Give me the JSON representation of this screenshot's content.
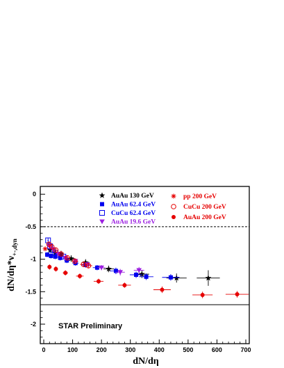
{
  "chart_data": {
    "type": "scatter",
    "xlabel": "dN/dη",
    "ylabel_main": "dN/dη*ν",
    "ylabel_sub": "+-,dyn",
    "xlim": [
      -12,
      712
    ],
    "ylim": [
      -2.3,
      0.12
    ],
    "xticks": [
      0,
      100,
      200,
      300,
      400,
      500,
      600,
      700
    ],
    "yticks": [
      0,
      -0.5,
      -1,
      -1.5,
      -2
    ],
    "ytick_labels": [
      "0",
      "-0.5",
      "-1",
      "-1.5",
      "-2"
    ],
    "reference_lines": [
      {
        "y": -0.5,
        "style": "dashed"
      },
      {
        "y": -1.7,
        "style": "solid"
      }
    ],
    "annotation": "STAR Preliminary",
    "series": [
      {
        "name": "AuAu 130 GeV",
        "marker": "star",
        "color": "#000000",
        "points": [
          {
            "x": 22,
            "y": -0.86,
            "ex": 4,
            "ey": 0.04
          },
          {
            "x": 40,
            "y": -0.9,
            "ex": 6,
            "ey": 0.04
          },
          {
            "x": 60,
            "y": -0.92,
            "ex": 8,
            "ey": 0.05
          },
          {
            "x": 95,
            "y": -0.99,
            "ex": 12,
            "ey": 0.05
          },
          {
            "x": 145,
            "y": -1.05,
            "ex": 14,
            "ey": 0.05
          },
          {
            "x": 225,
            "y": -1.15,
            "ex": 18,
            "ey": 0.05
          },
          {
            "x": 340,
            "y": -1.23,
            "ex": 25,
            "ey": 0.06
          },
          {
            "x": 460,
            "y": -1.29,
            "ex": 35,
            "ey": 0.07
          },
          {
            "x": 570,
            "y": -1.29,
            "ex": 40,
            "ey": 0.12
          }
        ]
      },
      {
        "name": "AuAu 62.4 GeV",
        "marker": "square",
        "color": "#0000ee",
        "points": [
          {
            "x": 12,
            "y": -0.93,
            "ex": 3,
            "ey": 0.04
          },
          {
            "x": 25,
            "y": -0.95,
            "ex": 4,
            "ey": 0.04
          },
          {
            "x": 40,
            "y": -0.96,
            "ex": 5,
            "ey": 0.04
          },
          {
            "x": 57,
            "y": -0.98,
            "ex": 7,
            "ey": 0.04
          },
          {
            "x": 80,
            "y": -1.02,
            "ex": 9,
            "ey": 0.04
          },
          {
            "x": 110,
            "y": -1.06,
            "ex": 11,
            "ey": 0.04
          },
          {
            "x": 145,
            "y": -1.09,
            "ex": 14,
            "ey": 0.04
          },
          {
            "x": 185,
            "y": -1.13,
            "ex": 15,
            "ey": 0.04
          },
          {
            "x": 250,
            "y": -1.18,
            "ex": 20,
            "ey": 0.05
          },
          {
            "x": 320,
            "y": -1.24,
            "ex": 22,
            "ey": 0.05
          },
          {
            "x": 355,
            "y": -1.27,
            "ex": 25,
            "ey": 0.05
          },
          {
            "x": 440,
            "y": -1.28,
            "ex": 30,
            "ey": 0.05
          }
        ]
      },
      {
        "name": "CuCu 62.4 GeV",
        "marker": "open-square",
        "color": "#0000ee",
        "points": [
          {
            "x": 15,
            "y": -0.71,
            "ex": 2,
            "ey": 0.04
          },
          {
            "x": 22,
            "y": -0.8,
            "ex": 3,
            "ey": 0.04
          },
          {
            "x": 30,
            "y": -0.86,
            "ex": 4,
            "ey": 0.04
          },
          {
            "x": 40,
            "y": -0.9,
            "ex": 5,
            "ey": 0.04
          },
          {
            "x": 52,
            "y": -0.93,
            "ex": 6,
            "ey": 0.04
          },
          {
            "x": 68,
            "y": -0.96,
            "ex": 7,
            "ey": 0.04
          }
        ]
      },
      {
        "name": "AuAu 19.6 GeV",
        "marker": "triangle-down",
        "color": "#9b1ee0",
        "points": [
          {
            "x": 20,
            "y": -0.8,
            "ex": 4,
            "ey": 0.04
          },
          {
            "x": 32,
            "y": -0.85,
            "ex": 5,
            "ey": 0.04
          },
          {
            "x": 50,
            "y": -0.92,
            "ex": 6,
            "ey": 0.04
          },
          {
            "x": 75,
            "y": -0.98,
            "ex": 8,
            "ey": 0.04
          },
          {
            "x": 110,
            "y": -1.03,
            "ex": 10,
            "ey": 0.04
          },
          {
            "x": 150,
            "y": -1.08,
            "ex": 12,
            "ey": 0.04
          },
          {
            "x": 200,
            "y": -1.13,
            "ex": 14,
            "ey": 0.04
          },
          {
            "x": 265,
            "y": -1.2,
            "ex": 16,
            "ey": 0.05
          },
          {
            "x": 330,
            "y": -1.17,
            "ex": 18,
            "ey": 0.05
          }
        ]
      },
      {
        "name": "pp 200 GeV",
        "marker": "asterisk",
        "color": "#e60000",
        "points": [
          {
            "x": 5,
            "y": -0.84,
            "ex": 1,
            "ey": 0.03
          }
        ]
      },
      {
        "name": "CuCu 200 GeV",
        "marker": "open-circle",
        "color": "#e60000",
        "points": [
          {
            "x": 18,
            "y": -0.77,
            "ex": 3,
            "ey": 0.04
          },
          {
            "x": 28,
            "y": -0.81,
            "ex": 4,
            "ey": 0.04
          },
          {
            "x": 42,
            "y": -0.86,
            "ex": 5,
            "ey": 0.04
          },
          {
            "x": 60,
            "y": -0.92,
            "ex": 6,
            "ey": 0.04
          },
          {
            "x": 82,
            "y": -0.98,
            "ex": 8,
            "ey": 0.04
          },
          {
            "x": 108,
            "y": -1.03,
            "ex": 10,
            "ey": 0.04
          },
          {
            "x": 138,
            "y": -1.08,
            "ex": 12,
            "ey": 0.04
          },
          {
            "x": 155,
            "y": -1.1,
            "ex": 13,
            "ey": 0.04
          }
        ]
      },
      {
        "name": "AuAu 200 GeV",
        "marker": "filled-circle",
        "color": "#e60000",
        "points": [
          {
            "x": 20,
            "y": -1.12,
            "ex": 4,
            "ey": 0.04
          },
          {
            "x": 42,
            "y": -1.15,
            "ex": 6,
            "ey": 0.04
          },
          {
            "x": 75,
            "y": -1.21,
            "ex": 9,
            "ey": 0.04
          },
          {
            "x": 125,
            "y": -1.26,
            "ex": 13,
            "ey": 0.04
          },
          {
            "x": 190,
            "y": -1.34,
            "ex": 17,
            "ey": 0.04
          },
          {
            "x": 280,
            "y": -1.4,
            "ex": 22,
            "ey": 0.04
          },
          {
            "x": 410,
            "y": -1.47,
            "ex": 30,
            "ey": 0.05
          },
          {
            "x": 550,
            "y": -1.55,
            "ex": 35,
            "ey": 0.05
          },
          {
            "x": 670,
            "y": -1.54,
            "ex": 40,
            "ey": 0.05
          }
        ]
      }
    ]
  }
}
